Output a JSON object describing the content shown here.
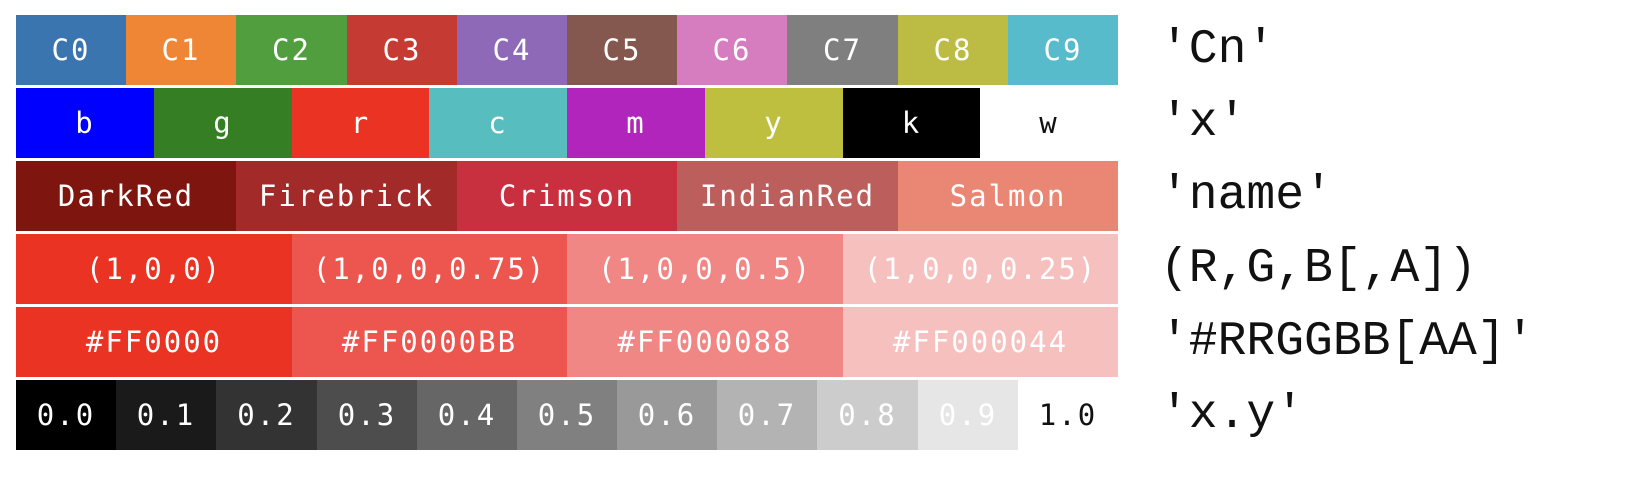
{
  "rows": [
    {
      "label": "'Cn'",
      "cells": [
        {
          "text": "C0",
          "bg": "#3b75af",
          "fg": "#ffffff"
        },
        {
          "text": "C1",
          "bg": "#ef8636",
          "fg": "#ffffff"
        },
        {
          "text": "C2",
          "bg": "#519e3e",
          "fg": "#ffffff"
        },
        {
          "text": "C3",
          "bg": "#c53a32",
          "fg": "#ffffff"
        },
        {
          "text": "C4",
          "bg": "#8d69b8",
          "fg": "#ffffff"
        },
        {
          "text": "C5",
          "bg": "#84584e",
          "fg": "#ffffff"
        },
        {
          "text": "C6",
          "bg": "#d57dbe",
          "fg": "#ffffff"
        },
        {
          "text": "C7",
          "bg": "#7f7f7f",
          "fg": "#ffffff"
        },
        {
          "text": "C8",
          "bg": "#bcbc45",
          "fg": "#ffffff"
        },
        {
          "text": "C9",
          "bg": "#58bbcc",
          "fg": "#ffffff"
        }
      ]
    },
    {
      "label": "'x'",
      "cells": [
        {
          "text": "b",
          "bg": "#0000ff",
          "fg": "#ffffff"
        },
        {
          "text": "g",
          "bg": "#367e24",
          "fg": "#ffffff"
        },
        {
          "text": "r",
          "bg": "#ea3323",
          "fg": "#ffffff"
        },
        {
          "text": "c",
          "bg": "#58bdbe",
          "fg": "#ffffff"
        },
        {
          "text": "m",
          "bg": "#b125bc",
          "fg": "#ffffff"
        },
        {
          "text": "y",
          "bg": "#bfbf3f",
          "fg": "#ffffff"
        },
        {
          "text": "k",
          "bg": "#000000",
          "fg": "#ffffff"
        },
        {
          "text": "w",
          "bg": "#ffffff",
          "fg": "#111111"
        }
      ]
    },
    {
      "label": "'name'",
      "cells": [
        {
          "text": "DarkRed",
          "bg": "#7e150f",
          "fg": "#ffffff"
        },
        {
          "text": "Firebrick",
          "bg": "#a22b2a",
          "fg": "#ffffff"
        },
        {
          "text": "Crimson",
          "bg": "#c9303f",
          "fg": "#ffffff"
        },
        {
          "text": "IndianRed",
          "bg": "#bc5e5c",
          "fg": "#ffffff"
        },
        {
          "text": "Salmon",
          "bg": "#ea8674",
          "fg": "#ffffff"
        }
      ]
    },
    {
      "label": "(R,G,B[,A])",
      "cells": [
        {
          "text": "(1,0,0)",
          "bg": "#ea3323",
          "fg": "#ffffff"
        },
        {
          "text": "(1,0,0,0.75)",
          "bg": "#ec564f",
          "fg": "#ffffff"
        },
        {
          "text": "(1,0,0,0.5)",
          "bg": "#f08784",
          "fg": "#ffffff"
        },
        {
          "text": "(1,0,0,0.25)",
          "bg": "#f6c0bf",
          "fg": "#ffffff"
        }
      ]
    },
    {
      "label": "'#RRGGBB[AA]'",
      "cells": [
        {
          "text": "#FF0000",
          "bg": "#ea3323",
          "fg": "#ffffff"
        },
        {
          "text": "#FF0000BB",
          "bg": "#ec564f",
          "fg": "#ffffff"
        },
        {
          "text": "#FF000088",
          "bg": "#f08784",
          "fg": "#ffffff"
        },
        {
          "text": "#FF000044",
          "bg": "#f6c0bf",
          "fg": "#ffffff"
        }
      ]
    },
    {
      "label": "'x.y'",
      "cells": [
        {
          "text": "0.0",
          "bg": "#000000",
          "fg": "#ffffff"
        },
        {
          "text": "0.1",
          "bg": "#1a1a1a",
          "fg": "#ffffff"
        },
        {
          "text": "0.2",
          "bg": "#333333",
          "fg": "#ffffff"
        },
        {
          "text": "0.3",
          "bg": "#4d4d4d",
          "fg": "#ffffff"
        },
        {
          "text": "0.4",
          "bg": "#666666",
          "fg": "#ffffff"
        },
        {
          "text": "0.5",
          "bg": "#808080",
          "fg": "#ffffff"
        },
        {
          "text": "0.6",
          "bg": "#999999",
          "fg": "#ffffff"
        },
        {
          "text": "0.7",
          "bg": "#b3b3b3",
          "fg": "#ffffff"
        },
        {
          "text": "0.8",
          "bg": "#cccccc",
          "fg": "#ffffff"
        },
        {
          "text": "0.9",
          "bg": "#e6e6e6",
          "fg": "#ffffff"
        },
        {
          "text": "1.0",
          "bg": "#ffffff",
          "fg": "#111111"
        }
      ]
    }
  ]
}
